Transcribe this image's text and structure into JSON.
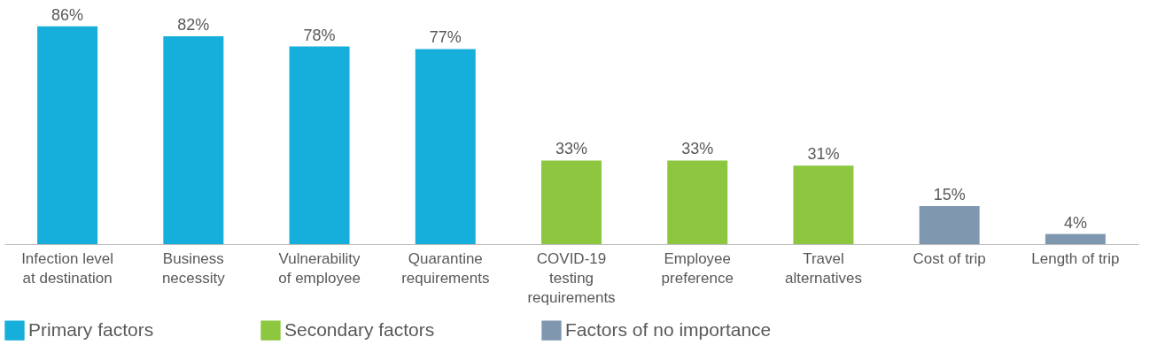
{
  "chart_data": {
    "type": "bar",
    "categories": [
      "Infection level\nat destination",
      "Business\nnecessity",
      "Vulnerability\nof employee",
      "Quarantine\nrequirements",
      "COVID-19\ntesting\nrequirements",
      "Employee\npreference",
      "Travel\nalternatives",
      "Cost of trip",
      "Length of trip"
    ],
    "series": [
      {
        "name": "Primary factors",
        "color": "#16aedb",
        "values": [
          86,
          82,
          78,
          77,
          null,
          null,
          null,
          null,
          null
        ],
        "value_labels": [
          "86%",
          "82%",
          "78%",
          "77%",
          null,
          null,
          null,
          null,
          null
        ]
      },
      {
        "name": "Secondary factors",
        "color": "#8dc63f",
        "values": [
          null,
          null,
          null,
          null,
          33,
          33,
          31,
          null,
          null
        ],
        "value_labels": [
          null,
          null,
          null,
          null,
          "33%",
          "33%",
          "31%",
          null,
          null
        ]
      },
      {
        "name": "Factors of no importance",
        "color": "#7f98b0",
        "values": [
          null,
          null,
          null,
          null,
          null,
          null,
          null,
          15,
          4
        ],
        "value_labels": [
          null,
          null,
          null,
          null,
          null,
          null,
          null,
          "15%",
          "4%"
        ]
      }
    ],
    "legend": "bottom",
    "grid": false
  }
}
